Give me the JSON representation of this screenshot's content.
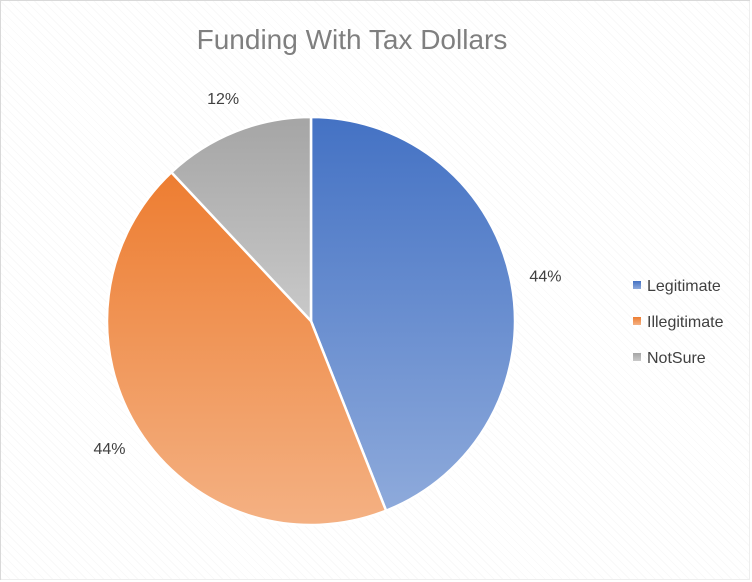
{
  "chart_data": {
    "type": "pie",
    "title": "Funding With Tax Dollars",
    "categories": [
      "Legitimate",
      "Illegitimate",
      "NotSure"
    ],
    "values": [
      44,
      44,
      12
    ],
    "data_labels": [
      "44%",
      "44%",
      "12%"
    ],
    "legend_position": "right",
    "colors": [
      {
        "top": "#4472c4",
        "bottom": "#8eaadb"
      },
      {
        "top": "#ed7d31",
        "bottom": "#f4b183"
      },
      {
        "top": "#a5a5a5",
        "bottom": "#c9c9c9"
      }
    ]
  }
}
